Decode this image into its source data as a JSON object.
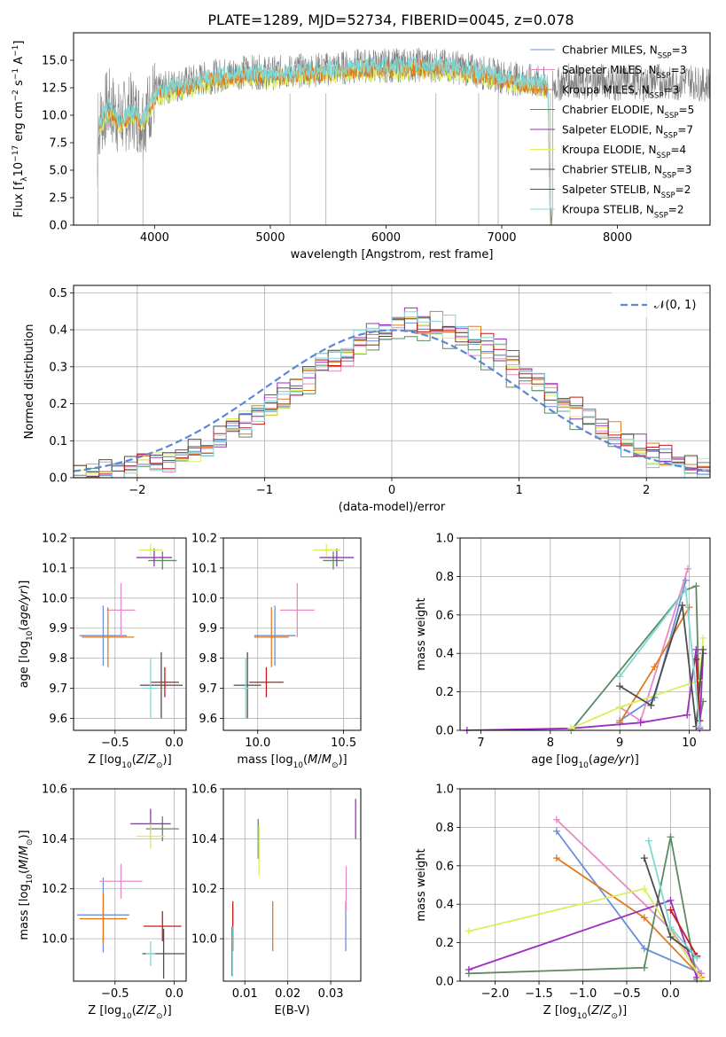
{
  "title": "PLATE=1289, MJD=52734, FIBERID=0045, z=0.078",
  "legend": [
    {
      "label": "Chabrier MILES, N",
      "sub": "SSP",
      "suffix": "=3",
      "color": "#6a8fdc"
    },
    {
      "label": "Salpeter MILES, N",
      "sub": "SSP",
      "suffix": "=3",
      "color": "#e88ac4"
    },
    {
      "label": "Kroupa MILES, N",
      "sub": "SSP",
      "suffix": "=3",
      "color": "#e07a1f"
    },
    {
      "label": "Chabrier ELODIE, N",
      "sub": "SSP",
      "suffix": "=5",
      "color": "#5c8a63"
    },
    {
      "label": "Salpeter ELODIE, N",
      "sub": "SSP",
      "suffix": "=7",
      "color": "#9b2fbf"
    },
    {
      "label": "Kroupa ELODIE, N",
      "sub": "SSP",
      "suffix": "=4",
      "color": "#d6f060"
    },
    {
      "label": "Chabrier STELIB, N",
      "sub": "SSP",
      "suffix": "=3",
      "color": "#4d4d4d"
    },
    {
      "label": "Salpeter STELIB, N",
      "sub": "SSP",
      "suffix": "=2",
      "color": "#c41a1a"
    },
    {
      "label": "Kroupa STELIB, N",
      "sub": "SSP",
      "suffix": "=2",
      "color": "#7fd8d8"
    }
  ],
  "chart_data": [
    {
      "id": "spectrum",
      "type": "line",
      "xlabel": "wavelength [Angstrom, rest frame]",
      "ylabel": "Flux [f_λ10^-17 erg cm^-2 s^-1 A^-1]",
      "xlim": [
        3300,
        8800
      ],
      "ylim": [
        0,
        17.5
      ],
      "xticks": [
        4000,
        5000,
        6000,
        7000,
        8000
      ],
      "yticks": [
        0.0,
        2.5,
        5.0,
        7.5,
        10.0,
        12.5,
        15.0
      ],
      "ytick_labels": [
        "0.0",
        "2.5",
        "5.0",
        "7.5",
        "10.0",
        "12.5",
        "15.0"
      ],
      "data_color": "#808080",
      "model_color": "#7fd8d8",
      "model_points": [
        [
          3500,
          0
        ],
        [
          3510,
          9
        ],
        [
          3600,
          11
        ],
        [
          3700,
          9.5
        ],
        [
          3800,
          10.5
        ],
        [
          3900,
          9.5
        ],
        [
          4000,
          12
        ],
        [
          4100,
          12.5
        ],
        [
          4300,
          13
        ],
        [
          4500,
          13.5
        ],
        [
          4800,
          14
        ],
        [
          5000,
          13.8
        ],
        [
          5200,
          14
        ],
        [
          5500,
          14.2
        ],
        [
          5800,
          14.5
        ],
        [
          6000,
          14.5
        ],
        [
          6300,
          14.6
        ],
        [
          6600,
          14.4
        ],
        [
          7000,
          13.5
        ],
        [
          7200,
          13.2
        ],
        [
          7400,
          12.8
        ],
        [
          7420,
          0
        ]
      ],
      "grid": false
    },
    {
      "id": "residuals",
      "type": "line",
      "xlabel": "(data-model)/error",
      "ylabel": "Normed distribution",
      "xlim": [
        -2.5,
        2.5
      ],
      "ylim": [
        0,
        0.52
      ],
      "xticks": [
        -2,
        -1,
        0,
        1,
        2
      ],
      "xtick_labels": [
        "−2",
        "−1",
        "0",
        "1",
        "2"
      ],
      "yticks": [
        0.0,
        0.1,
        0.2,
        0.3,
        0.4,
        0.5
      ],
      "ytick_labels": [
        "0.0",
        "0.1",
        "0.2",
        "0.3",
        "0.4",
        "0.5"
      ],
      "gaussian_label": "𝒩(0, 1)",
      "gaussian_color": "#5b87d6",
      "bin_width": 0.1,
      "hist_shift": [
        0.2,
        0.22,
        0.25,
        0.18,
        0.23,
        0.2,
        0.21,
        0.24,
        0.19
      ],
      "hist_amp": [
        0.41,
        0.4,
        0.42,
        0.38,
        0.43,
        0.41,
        0.4,
        0.41,
        0.42
      ],
      "grid": true
    },
    {
      "id": "z_age",
      "type": "scatter",
      "xlabel": "Z [log10(Z/Z☉)]",
      "ylabel": "age  [log10(age/yr)]",
      "xlim": [
        -0.85,
        0.1
      ],
      "ylim": [
        9.56,
        10.2
      ],
      "xticks": [
        -0.5,
        0.0
      ],
      "xtick_labels": [
        "−0.5",
        "0.0"
      ],
      "yticks": [
        9.6,
        9.7,
        9.8,
        9.9,
        10.0,
        10.1,
        10.2
      ],
      "ytick_labels": [
        "9.6",
        "9.7",
        "9.8",
        "9.9",
        "10.0",
        "10.1",
        "10.2"
      ],
      "points": [
        {
          "x": -0.6,
          "y": 9.875,
          "xerr": 0.2,
          "yerr": 0.1
        },
        {
          "x": -0.45,
          "y": 9.96,
          "xerr": 0.12,
          "yerr": 0.09
        },
        {
          "x": -0.56,
          "y": 9.87,
          "xerr": 0.22,
          "yerr": 0.1
        },
        {
          "x": -0.1,
          "y": 10.125,
          "xerr": 0.12,
          "yerr": 0.03
        },
        {
          "x": -0.17,
          "y": 10.135,
          "xerr": 0.15,
          "yerr": 0.03
        },
        {
          "x": -0.2,
          "y": 10.16,
          "xerr": 0.1,
          "yerr": 0.02
        },
        {
          "x": -0.11,
          "y": 9.71,
          "xerr": 0.18,
          "yerr": 0.11
        },
        {
          "x": -0.08,
          "y": 9.72,
          "xerr": 0.12,
          "yerr": 0.05
        },
        {
          "x": -0.2,
          "y": 9.7,
          "xerr": 0.06,
          "yerr": 0.1
        }
      ],
      "grid": true
    },
    {
      "id": "mass_age",
      "type": "scatter",
      "xlabel": "mass [log10(M/M☉)]",
      "ylabel": "",
      "xlim": [
        9.8,
        10.6
      ],
      "ylim": [
        9.56,
        10.2
      ],
      "xticks": [
        10.0,
        10.5
      ],
      "xtick_labels": [
        "10.0",
        "10.5"
      ],
      "yticks": [
        9.6,
        9.7,
        9.8,
        9.9,
        10.0,
        10.1,
        10.2
      ],
      "ytick_labels": [
        "9.6",
        "9.7",
        "9.8",
        "9.9",
        "10.0",
        "10.1",
        "10.2"
      ],
      "points": [
        {
          "x": 10.1,
          "y": 9.875,
          "xerr": 0.12,
          "yerr": 0.1
        },
        {
          "x": 10.23,
          "y": 9.96,
          "xerr": 0.1,
          "yerr": 0.09
        },
        {
          "x": 10.08,
          "y": 9.87,
          "xerr": 0.1,
          "yerr": 0.1
        },
        {
          "x": 10.44,
          "y": 10.125,
          "xerr": 0.06,
          "yerr": 0.03
        },
        {
          "x": 10.46,
          "y": 10.135,
          "xerr": 0.1,
          "yerr": 0.03
        },
        {
          "x": 10.4,
          "y": 10.16,
          "xerr": 0.08,
          "yerr": 0.02
        },
        {
          "x": 9.94,
          "y": 9.71,
          "xerr": 0.08,
          "yerr": 0.11
        },
        {
          "x": 10.05,
          "y": 9.72,
          "xerr": 0.1,
          "yerr": 0.05
        },
        {
          "x": 9.93,
          "y": 9.7,
          "xerr": 0.02,
          "yerr": 0.1
        }
      ],
      "grid": true
    },
    {
      "id": "age_weight",
      "type": "line",
      "xlabel": "age  [log10(age/yr)]",
      "ylabel": "mass weight",
      "xlim": [
        6.7,
        10.3
      ],
      "ylim": [
        0,
        1.0
      ],
      "xticks": [
        7,
        8,
        9,
        10
      ],
      "xtick_labels": [
        "7",
        "8",
        "9",
        "10"
      ],
      "yticks": [
        0.0,
        0.2,
        0.4,
        0.6,
        0.8,
        1.0
      ],
      "ytick_labels": [
        "0.0",
        "0.2",
        "0.4",
        "0.6",
        "0.8",
        "1.0"
      ],
      "series": [
        {
          "x": [
            9.0,
            9.5,
            9.95
          ],
          "y": [
            0.05,
            0.17,
            0.78
          ]
        },
        {
          "x": [
            9.0,
            9.3,
            9.98
          ],
          "y": [
            0.12,
            0.05,
            0.84
          ]
        },
        {
          "x": [
            9.0,
            9.5,
            10.0
          ],
          "y": [
            0.04,
            0.33,
            0.64
          ]
        },
        {
          "x": [
            8.3,
            9.95,
            10.1,
            10.15,
            10.2
          ],
          "y": [
            0.0,
            0.73,
            0.75,
            0.05,
            0.15
          ]
        },
        {
          "x": [
            6.8,
            8.3,
            9.3,
            9.97,
            10.1,
            10.15,
            10.2
          ],
          "y": [
            0.0,
            0.01,
            0.04,
            0.08,
            0.42,
            0.01,
            0.4
          ]
        },
        {
          "x": [
            8.3,
            9.0,
            10.15,
            10.2
          ],
          "y": [
            0.01,
            0.12,
            0.26,
            0.48
          ]
        },
        {
          "x": [
            9.0,
            9.45,
            9.9,
            10.1,
            10.2
          ],
          "y": [
            0.23,
            0.13,
            0.65,
            0.02,
            0.42
          ]
        },
        {
          "x": [
            10.1,
            10.15
          ],
          "y": [
            0.37,
            0.05
          ]
        },
        {
          "x": [
            9.0,
            9.95,
            10.15
          ],
          "y": [
            0.28,
            0.73,
            0.02
          ]
        }
      ],
      "grid": true
    },
    {
      "id": "z_mass",
      "type": "scatter",
      "xlabel": "Z [log10(Z/Z☉)]",
      "ylabel": "mass [log10(M/M☉)]",
      "xlim": [
        -0.85,
        0.1
      ],
      "ylim": [
        9.83,
        10.6
      ],
      "xticks": [
        -0.5,
        0.0
      ],
      "xtick_labels": [
        "−0.5",
        "0.0"
      ],
      "yticks": [
        10.0,
        10.2,
        10.4,
        10.6
      ],
      "ytick_labels": [
        "10.0",
        "10.2",
        "10.4",
        "10.6"
      ],
      "points": [
        {
          "x": -0.6,
          "y": 10.095,
          "xerr": 0.22,
          "yerr": 0.15
        },
        {
          "x": -0.45,
          "y": 10.23,
          "xerr": 0.18,
          "yerr": 0.07
        },
        {
          "x": -0.6,
          "y": 10.08,
          "xerr": 0.2,
          "yerr": 0.1
        },
        {
          "x": -0.1,
          "y": 10.44,
          "xerr": 0.14,
          "yerr": 0.05
        },
        {
          "x": -0.2,
          "y": 10.46,
          "xerr": 0.17,
          "yerr": 0.06
        },
        {
          "x": -0.2,
          "y": 10.41,
          "xerr": 0.12,
          "yerr": 0.05
        },
        {
          "x": -0.09,
          "y": 9.94,
          "xerr": 0.18,
          "yerr": 0.1
        },
        {
          "x": -0.1,
          "y": 10.05,
          "xerr": 0.16,
          "yerr": 0.06
        },
        {
          "x": -0.2,
          "y": 9.94,
          "xerr": 0.04,
          "yerr": 0.05
        }
      ],
      "grid": true
    },
    {
      "id": "ebv_mass",
      "type": "scatter",
      "xlabel": "E(B-V)",
      "ylabel": "",
      "xlim": [
        0.005,
        0.037
      ],
      "ylim": [
        9.83,
        10.6
      ],
      "xticks": [
        0.01,
        0.02,
        0.03
      ],
      "xtick_labels": [
        "0.01",
        "0.02",
        "0.03"
      ],
      "yticks": [
        10.0,
        10.2,
        10.4,
        10.6
      ],
      "ytick_labels": [
        "10.0",
        "10.2",
        "10.4",
        "10.6"
      ],
      "points": [
        {
          "x": 0.0335,
          "y": 10.05,
          "yerr": 0.1
        },
        {
          "x": 0.0336,
          "y": 10.2,
          "yerr": 0.09
        },
        {
          "x": 0.0165,
          "y": 10.05,
          "yerr": 0.1
        },
        {
          "x": 0.0131,
          "y": 10.4,
          "yerr": 0.08
        },
        {
          "x": 0.0358,
          "y": 10.48,
          "yerr": 0.08
        },
        {
          "x": 0.0133,
          "y": 10.35,
          "yerr": 0.1
        },
        {
          "x": 0.007,
          "y": 9.95,
          "yerr": 0.1
        },
        {
          "x": 0.0072,
          "y": 10.05,
          "yerr": 0.1
        },
        {
          "x": 0.0071,
          "y": 9.95,
          "yerr": 0.1
        }
      ],
      "grid": true
    },
    {
      "id": "z_weight",
      "type": "line",
      "xlabel": "Z [log10(Z/Z☉)]",
      "ylabel": "mass weight",
      "xlim": [
        -2.4,
        0.45
      ],
      "ylim": [
        0,
        1.0
      ],
      "xticks": [
        -2.0,
        -1.5,
        -1.0,
        -0.5,
        0.0
      ],
      "xtick_labels": [
        "−2.0",
        "−1.5",
        "−1.0",
        "−0.5",
        "0.0"
      ],
      "yticks": [
        0.0,
        0.2,
        0.4,
        0.6,
        0.8,
        1.0
      ],
      "ytick_labels": [
        "0.0",
        "0.2",
        "0.4",
        "0.6",
        "0.8",
        "1.0"
      ],
      "series": [
        {
          "x": [
            -1.3,
            -0.3,
            0.35
          ],
          "y": [
            0.78,
            0.17,
            0.04
          ]
        },
        {
          "x": [
            -1.3,
            0.0,
            0.35
          ],
          "y": [
            0.84,
            0.27,
            0.04
          ]
        },
        {
          "x": [
            -1.3,
            -0.3,
            0.35
          ],
          "y": [
            0.64,
            0.33,
            0.02
          ]
        },
        {
          "x": [
            -2.3,
            -0.3,
            0.0,
            0.3
          ],
          "y": [
            0.04,
            0.07,
            0.75,
            0.01
          ]
        },
        {
          "x": [
            -2.3,
            0.0,
            0.3
          ],
          "y": [
            0.06,
            0.42,
            0.02
          ]
        },
        {
          "x": [
            -2.3,
            -0.3,
            0.35
          ],
          "y": [
            0.26,
            0.48,
            0.01
          ]
        },
        {
          "x": [
            -0.3,
            0.0,
            0.3
          ],
          "y": [
            0.64,
            0.23,
            0.13
          ]
        },
        {
          "x": [
            0.0,
            0.3
          ],
          "y": [
            0.37,
            0.13
          ]
        },
        {
          "x": [
            -0.25,
            0.0,
            0.3
          ],
          "y": [
            0.73,
            0.28,
            0.12
          ]
        }
      ],
      "grid": true
    }
  ]
}
